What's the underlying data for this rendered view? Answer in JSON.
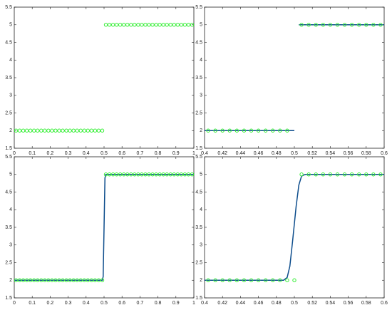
{
  "chart_data": [
    {
      "type": "line",
      "xlim": [
        0,
        1
      ],
      "ylim": [
        1.5,
        5.5
      ],
      "xticks": [
        0,
        0.1,
        0.2,
        0.3,
        0.4,
        0.5,
        0.6,
        0.7,
        0.8,
        0.9,
        1
      ],
      "yticks": [
        1.5,
        2,
        2.5,
        3,
        3.5,
        4,
        4.5,
        5,
        5.5
      ],
      "series": [
        {
          "style": "markers",
          "color": "#33ee33",
          "x": [
            0.01,
            0.03,
            0.05,
            0.07,
            0.09,
            0.11,
            0.13,
            0.15,
            0.17,
            0.19,
            0.21,
            0.23,
            0.25,
            0.27,
            0.29,
            0.31,
            0.33,
            0.35,
            0.37,
            0.39,
            0.41,
            0.43,
            0.45,
            0.47,
            0.49,
            0.51,
            0.53,
            0.55,
            0.57,
            0.59,
            0.61,
            0.63,
            0.65,
            0.67,
            0.69,
            0.71,
            0.73,
            0.75,
            0.77,
            0.79,
            0.81,
            0.83,
            0.85,
            0.87,
            0.89,
            0.91,
            0.93,
            0.95,
            0.97,
            0.99
          ],
          "values": [
            2,
            2,
            2,
            2,
            2,
            2,
            2,
            2,
            2,
            2,
            2,
            2,
            2,
            2,
            2,
            2,
            2,
            2,
            2,
            2,
            2,
            2,
            2,
            2,
            2,
            5,
            5,
            5,
            5,
            5,
            5,
            5,
            5,
            5,
            5,
            5,
            5,
            5,
            5,
            5,
            5,
            5,
            5,
            5,
            5,
            5,
            5,
            5,
            5,
            5
          ]
        }
      ]
    },
    {
      "type": "line",
      "xlim": [
        0.4,
        0.6
      ],
      "ylim": [
        1.5,
        5.5
      ],
      "xticks": [
        0.4,
        0.42,
        0.44,
        0.46,
        0.48,
        0.5,
        0.52,
        0.54,
        0.56,
        0.58,
        0.6
      ],
      "yticks": [
        1.5,
        2,
        2.5,
        3,
        3.5,
        4,
        4.5,
        5,
        5.5
      ],
      "series": [
        {
          "style": "line",
          "color": "#0d4d8c",
          "x": [
            0.4,
            0.5,
            0.5,
            0.505,
            0.6
          ],
          "values": [
            2,
            2,
            null,
            5,
            5
          ]
        },
        {
          "style": "markers",
          "color": "#33ee33",
          "x": [
            0.404,
            0.412,
            0.42,
            0.428,
            0.436,
            0.444,
            0.452,
            0.46,
            0.468,
            0.476,
            0.484,
            0.492,
            0.508,
            0.516,
            0.524,
            0.532,
            0.54,
            0.548,
            0.556,
            0.564,
            0.572,
            0.58,
            0.588,
            0.596
          ],
          "values": [
            2,
            2,
            2,
            2,
            2,
            2,
            2,
            2,
            2,
            2,
            2,
            2,
            5,
            5,
            5,
            5,
            5,
            5,
            5,
            5,
            5,
            5,
            5,
            5
          ]
        }
      ]
    },
    {
      "type": "line",
      "xlim": [
        0,
        1
      ],
      "ylim": [
        1.5,
        5.5
      ],
      "xticks": [
        0,
        0.1,
        0.2,
        0.3,
        0.4,
        0.5,
        0.6,
        0.7,
        0.8,
        0.9,
        1
      ],
      "yticks": [
        1.5,
        2,
        2.5,
        3,
        3.5,
        4,
        4.5,
        5,
        5.5
      ],
      "series": [
        {
          "style": "line",
          "color": "#0d4d8c",
          "x": [
            0,
            0.49,
            0.495,
            0.5,
            0.505,
            0.51,
            1
          ],
          "values": [
            2,
            2,
            2.1,
            3.5,
            4.9,
            5,
            5
          ]
        },
        {
          "style": "markers",
          "color": "#33ee33",
          "x": [
            0.01,
            0.03,
            0.05,
            0.07,
            0.09,
            0.11,
            0.13,
            0.15,
            0.17,
            0.19,
            0.21,
            0.23,
            0.25,
            0.27,
            0.29,
            0.31,
            0.33,
            0.35,
            0.37,
            0.39,
            0.41,
            0.43,
            0.45,
            0.47,
            0.49,
            0.51,
            0.53,
            0.55,
            0.57,
            0.59,
            0.61,
            0.63,
            0.65,
            0.67,
            0.69,
            0.71,
            0.73,
            0.75,
            0.77,
            0.79,
            0.81,
            0.83,
            0.85,
            0.87,
            0.89,
            0.91,
            0.93,
            0.95,
            0.97,
            0.99
          ],
          "values": [
            2,
            2,
            2,
            2,
            2,
            2,
            2,
            2,
            2,
            2,
            2,
            2,
            2,
            2,
            2,
            2,
            2,
            2,
            2,
            2,
            2,
            2,
            2,
            2,
            2,
            5,
            5,
            5,
            5,
            5,
            5,
            5,
            5,
            5,
            5,
            5,
            5,
            5,
            5,
            5,
            5,
            5,
            5,
            5,
            5,
            5,
            5,
            5,
            5,
            5
          ]
        }
      ]
    },
    {
      "type": "line",
      "xlim": [
        0.4,
        0.6
      ],
      "ylim": [
        1.5,
        5.5
      ],
      "xticks": [
        0.4,
        0.42,
        0.44,
        0.46,
        0.48,
        0.5,
        0.52,
        0.54,
        0.56,
        0.58,
        0.6
      ],
      "yticks": [
        1.5,
        2,
        2.5,
        3,
        3.5,
        4,
        4.5,
        5,
        5.5
      ],
      "series": [
        {
          "style": "line",
          "color": "#0d4d8c",
          "x": [
            0.4,
            0.488,
            0.492,
            0.495,
            0.498,
            0.5,
            0.502,
            0.505,
            0.508,
            0.512,
            0.6
          ],
          "values": [
            2,
            2,
            2.08,
            2.4,
            3.1,
            3.6,
            4.1,
            4.7,
            4.95,
            5,
            5
          ]
        },
        {
          "style": "markers",
          "color": "#33ee33",
          "x": [
            0.404,
            0.412,
            0.42,
            0.428,
            0.436,
            0.444,
            0.452,
            0.46,
            0.468,
            0.476,
            0.484,
            0.492,
            0.5,
            0.508,
            0.516,
            0.524,
            0.532,
            0.54,
            0.548,
            0.556,
            0.564,
            0.572,
            0.58,
            0.588,
            0.596
          ],
          "values": [
            2,
            2,
            2,
            2,
            2,
            2,
            2,
            2,
            2,
            2,
            2,
            2,
            2,
            5,
            5,
            5,
            5,
            5,
            5,
            5,
            5,
            5,
            5,
            5,
            5
          ]
        }
      ]
    }
  ]
}
